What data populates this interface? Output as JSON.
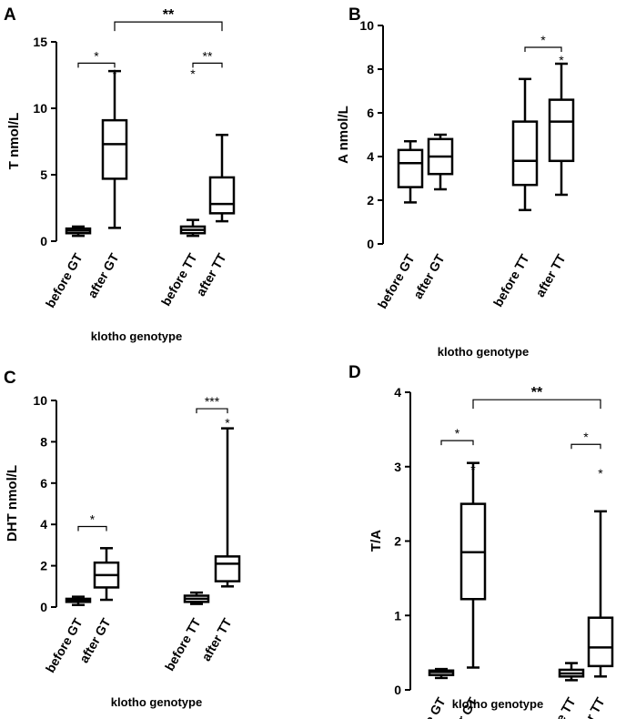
{
  "chart_data": [
    {
      "type": "box",
      "panel": "A",
      "ylabel": "T nmol/L",
      "xlabel": "klotho genotype",
      "ylim": [
        0,
        15
      ],
      "yticks": [
        "0",
        "5",
        "10",
        "15"
      ],
      "categories": [
        "before GT",
        "after GT",
        "before TT",
        "after TT"
      ],
      "boxes": [
        {
          "min": 0.4,
          "q1": 0.6,
          "median": 0.8,
          "q3": 0.95,
          "max": 1.1
        },
        {
          "min": 1.0,
          "q1": 4.7,
          "median": 7.3,
          "q3": 9.1,
          "max": 12.8
        },
        {
          "min": 0.4,
          "q1": 0.6,
          "median": 0.85,
          "q3": 1.1,
          "max": 1.6
        },
        {
          "min": 1.5,
          "q1": 2.1,
          "median": 2.8,
          "q3": 4.8,
          "max": 8.0
        }
      ],
      "annotations": [
        {
          "type": "bracket",
          "from": 0,
          "to": 1,
          "y": 13.4,
          "text": "*"
        },
        {
          "type": "star",
          "at": 1,
          "y": 12.8,
          "text": "*"
        },
        {
          "type": "bracket",
          "from": 2,
          "to": 3,
          "y": 13.4,
          "text": "**"
        },
        {
          "type": "star",
          "at": 2,
          "y": 12.8,
          "text": "*"
        },
        {
          "type": "bracket",
          "from": 1,
          "to": 3,
          "y": 16.5,
          "text": "**",
          "big": true
        }
      ]
    },
    {
      "type": "box",
      "panel": "B",
      "ylabel": "A nmol/L",
      "xlabel": "klotho genotype",
      "ylim": [
        0,
        10
      ],
      "yticks": [
        "0",
        "2",
        "4",
        "6",
        "8",
        "10"
      ],
      "categories": [
        "before GT",
        "after GT",
        "before TT",
        "after TT"
      ],
      "boxes": [
        {
          "min": 1.9,
          "q1": 2.6,
          "median": 3.7,
          "q3": 4.3,
          "max": 4.7
        },
        {
          "min": 2.5,
          "q1": 3.2,
          "median": 4.0,
          "q3": 4.8,
          "max": 5.0
        },
        {
          "min": 1.55,
          "q1": 2.7,
          "median": 3.8,
          "q3": 5.6,
          "max": 7.55
        },
        {
          "min": 2.25,
          "q1": 3.8,
          "median": 5.6,
          "q3": 6.6,
          "max": 8.25
        }
      ],
      "annotations": [
        {
          "type": "bracket",
          "from": 2,
          "to": 3,
          "y": 9.0,
          "text": "*"
        },
        {
          "type": "star",
          "at": 3,
          "y": 8.55,
          "text": "*"
        }
      ]
    },
    {
      "type": "box",
      "panel": "C",
      "ylabel": "DHT nmol/L",
      "xlabel": "klotho genotype",
      "ylim": [
        0,
        10
      ],
      "yticks": [
        "0",
        "2",
        "4",
        "6",
        "8",
        "10"
      ],
      "categories": [
        "before GT",
        "after GT",
        "before TT",
        "after TT"
      ],
      "boxes": [
        {
          "min": 0.1,
          "q1": 0.25,
          "median": 0.3,
          "q3": 0.4,
          "max": 0.5
        },
        {
          "min": 0.35,
          "q1": 0.95,
          "median": 1.55,
          "q3": 2.15,
          "max": 2.85
        },
        {
          "min": 0.15,
          "q1": 0.25,
          "median": 0.4,
          "q3": 0.55,
          "max": 0.7
        },
        {
          "min": 1.0,
          "q1": 1.25,
          "median": 2.1,
          "q3": 2.45,
          "max": 8.65
        }
      ],
      "annotations": [
        {
          "type": "bracket",
          "from": 0,
          "to": 1,
          "y": 3.9,
          "text": "*"
        },
        {
          "type": "bracket",
          "from": 2,
          "to": 3,
          "y": 9.6,
          "text": "***"
        },
        {
          "type": "star",
          "at": 3,
          "y": 9.05,
          "text": "*"
        }
      ]
    },
    {
      "type": "box",
      "panel": "D",
      "ylabel": "T/A",
      "xlabel": "klotho genotype",
      "ylim": [
        0,
        4
      ],
      "yticks": [
        "0",
        "1",
        "2",
        "3",
        "4"
      ],
      "categories": [
        "before GT",
        "after GT",
        "before TT",
        "after TT"
      ],
      "boxes": [
        {
          "min": 0.16,
          "q1": 0.2,
          "median": 0.24,
          "q3": 0.26,
          "max": 0.28
        },
        {
          "min": 0.3,
          "q1": 1.22,
          "median": 1.85,
          "q3": 2.5,
          "max": 3.05
        },
        {
          "min": 0.13,
          "q1": 0.18,
          "median": 0.22,
          "q3": 0.27,
          "max": 0.36
        },
        {
          "min": 0.18,
          "q1": 0.32,
          "median": 0.57,
          "q3": 0.97,
          "max": 2.4
        }
      ],
      "annotations": [
        {
          "type": "bracket",
          "from": 0,
          "to": 1,
          "y": 3.35,
          "text": "*"
        },
        {
          "type": "star",
          "at": 1,
          "y": 3.0,
          "text": "*"
        },
        {
          "type": "bracket",
          "from": 2,
          "to": 3,
          "y": 3.3,
          "text": "*"
        },
        {
          "type": "star",
          "at": 3,
          "y": 2.95,
          "text": "*"
        },
        {
          "type": "bracket",
          "from": 1,
          "to": 3,
          "y": 3.9,
          "text": "**",
          "big": true
        }
      ]
    }
  ]
}
